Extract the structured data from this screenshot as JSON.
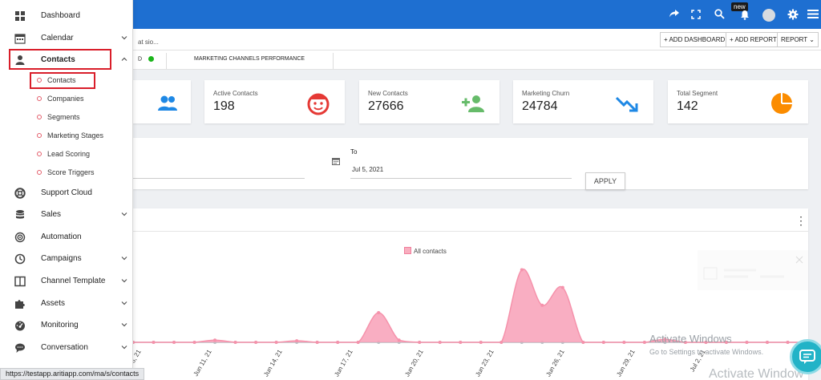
{
  "topbar": {
    "new_badge": "new"
  },
  "toolbar": {
    "truncated_text": "at sio...",
    "add_dashboard": "+ ADD DASHBOARD",
    "add_report": "+ ADD REPORT",
    "report": "REPORT"
  },
  "tabs": {
    "tab1_suffix": "D",
    "tab2": "MARKETING CHANNELS PERFORMANCE"
  },
  "cards": [
    {
      "label": "Active Contacts",
      "value": "198",
      "icon": "smiley-icon",
      "color": "#e53935"
    },
    {
      "label": "New Contacts",
      "value": "27666",
      "icon": "add-user-icon",
      "color": "#66bb6a"
    },
    {
      "label": "Marketing Churn",
      "value": "24784",
      "icon": "trend-down-icon",
      "color": "#1e88e5"
    },
    {
      "label": "Total Segment",
      "value": "142",
      "icon": "pie-icon",
      "color": "#fb8c00"
    }
  ],
  "date_filter": {
    "to_label": "To",
    "to_value": "Jul 5, 2021",
    "apply": "APPLY"
  },
  "chart_data": {
    "type": "area",
    "series": [
      {
        "name": "All contacts",
        "color": "#f8aebf",
        "values": [
          0,
          0,
          0,
          0,
          0.3,
          0,
          0,
          0,
          0.2,
          0,
          0,
          0,
          4,
          0.3,
          0,
          0,
          0,
          0,
          0,
          9.8,
          5,
          7.4,
          0,
          0,
          0,
          0,
          0.4,
          0,
          0,
          0,
          0,
          0,
          0,
          0
        ]
      },
      {
        "name": "",
        "color": "#cfd3d8",
        "values": [
          0,
          0,
          0,
          0,
          0,
          0,
          0,
          0,
          0,
          0,
          0,
          0,
          0,
          0,
          0,
          0,
          0,
          0,
          0,
          0,
          0,
          0,
          0,
          0,
          0,
          0,
          0,
          0,
          0,
          0,
          0,
          0,
          0,
          0
        ]
      }
    ],
    "x_labels": [
      "Jun 8, 21",
      "Jun 11, 21",
      "Jun 14, 21",
      "Jun 17, 21",
      "Jun 20, 21",
      "Jun 23, 21",
      "Jun 26, 21",
      "Jun 29, 21",
      "Jul 2, 21"
    ],
    "ylim": [
      0,
      10.5
    ]
  },
  "legend": {
    "all_contacts": "All contacts"
  },
  "watermark": {
    "line1": "Activate Windows",
    "line2": "Go to Settings to activate Windows.",
    "line3": "Activate Window"
  },
  "sidebar": {
    "items": [
      {
        "label": "Dashboard",
        "icon": "grid-icon"
      },
      {
        "label": "Calendar",
        "icon": "calendar-icon"
      },
      {
        "label": "Contacts",
        "icon": "person-icon"
      },
      {
        "label": "Support Cloud",
        "icon": "lifebuoy-icon"
      },
      {
        "label": "Sales",
        "icon": "database-icon"
      },
      {
        "label": "Automation",
        "icon": "target-icon"
      },
      {
        "label": "Campaigns",
        "icon": "clock-icon"
      },
      {
        "label": "Channel Template",
        "icon": "template-icon"
      },
      {
        "label": "Assets",
        "icon": "puzzle-icon"
      },
      {
        "label": "Monitoring",
        "icon": "gauge-icon"
      },
      {
        "label": "Conversation",
        "icon": "chat-icon"
      }
    ],
    "sub_items": [
      "Contacts",
      "Companies",
      "Segments",
      "Marketing Stages",
      "Lead Scoring",
      "Score Triggers"
    ]
  },
  "status_url": "https://testapp.aritiapp.com/ma/s/contacts"
}
